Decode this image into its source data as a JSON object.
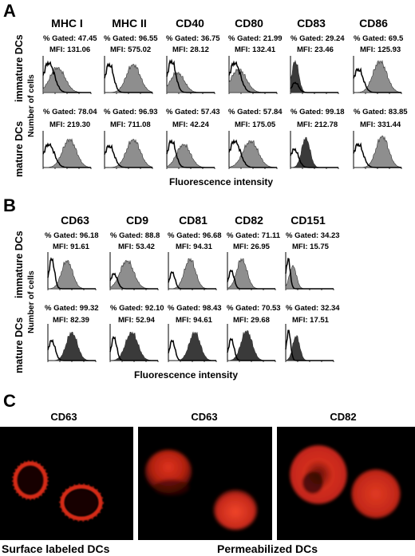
{
  "panel_a": {
    "letter": "A",
    "markers": [
      "MHC I",
      "MHC II",
      "CD40",
      "CD80",
      "CD83",
      "CD86"
    ],
    "row_labels": [
      "immature DCs",
      "mature DCs"
    ],
    "y_label": "Number of cells",
    "x_label": "Fluorescence intensity",
    "rows": [
      [
        {
          "gated": "% Gated: 47.45",
          "mfi": "MFI: 131.06"
        },
        {
          "gated": "% Gated: 96.55",
          "mfi": "MFI: 575.02"
        },
        {
          "gated": "% Gated: 36.75",
          "mfi": "MFI: 28.12"
        },
        {
          "gated": "% Gated: 21.99",
          "mfi": "MFI: 132.41"
        },
        {
          "gated": "% Gated: 29.24",
          "mfi": "MFI: 23.46"
        },
        {
          "gated": "% Gated: 69.5",
          "mfi": "MFI: 125.93"
        }
      ],
      [
        {
          "gated": "% Gated: 78.04",
          "mfi": "MFI: 219.30"
        },
        {
          "gated": "% Gated: 96.93",
          "mfi": "MFI: 711.08"
        },
        {
          "gated": "% Gated: 57.43",
          "mfi": "MFI: 42.24"
        },
        {
          "gated": "% Gated: 57.84",
          "mfi": "MFI: 175.05"
        },
        {
          "gated": "% Gated: 99.18",
          "mfi": "MFI: 212.78"
        },
        {
          "gated": "% Gated: 83.85",
          "mfi": "MFI: 331.44"
        }
      ]
    ]
  },
  "panel_b": {
    "letter": "B",
    "markers": [
      "CD63",
      "CD9",
      "CD81",
      "CD82",
      "CD151"
    ],
    "row_labels": [
      "immature DCs",
      "mature DCs"
    ],
    "y_label": "Number of cells",
    "x_label": "Fluorescence intensity",
    "rows": [
      [
        {
          "gated": "% Gated: 96.18",
          "mfi": "MFI: 91.61"
        },
        {
          "gated": "% Gated: 88.8",
          "mfi": "MFI: 53.42"
        },
        {
          "gated": "% Gated: 96.68",
          "mfi": "MFI: 94.31"
        },
        {
          "gated": "% Gated: 71.11",
          "mfi": "MFI: 26.95"
        },
        {
          "gated": "% Gated: 34.23",
          "mfi": "MFI: 15.75"
        }
      ],
      [
        {
          "gated": "% Gated: 99.32",
          "mfi": "MFI: 82.39"
        },
        {
          "gated": "% Gated: 92.10",
          "mfi": "MFI: 52.94"
        },
        {
          "gated": "% Gated: 98.43",
          "mfi": "MFI: 94.61"
        },
        {
          "gated": "% Gated: 70.53",
          "mfi": "MFI: 29.68"
        },
        {
          "gated": "% Gated: 32.34",
          "mfi": "MFI: 17.51"
        }
      ]
    ]
  },
  "panel_c": {
    "letter": "C",
    "captions": [
      "CD63",
      "CD63",
      "CD82"
    ],
    "bottom_labels": [
      "Surface labeled DCs",
      "Permeabilized DCs"
    ]
  },
  "colors": {
    "fill_gray": "#8e8e8e",
    "fill_dark": "#3a3a3a",
    "fluor_red": "#e8321e"
  }
}
